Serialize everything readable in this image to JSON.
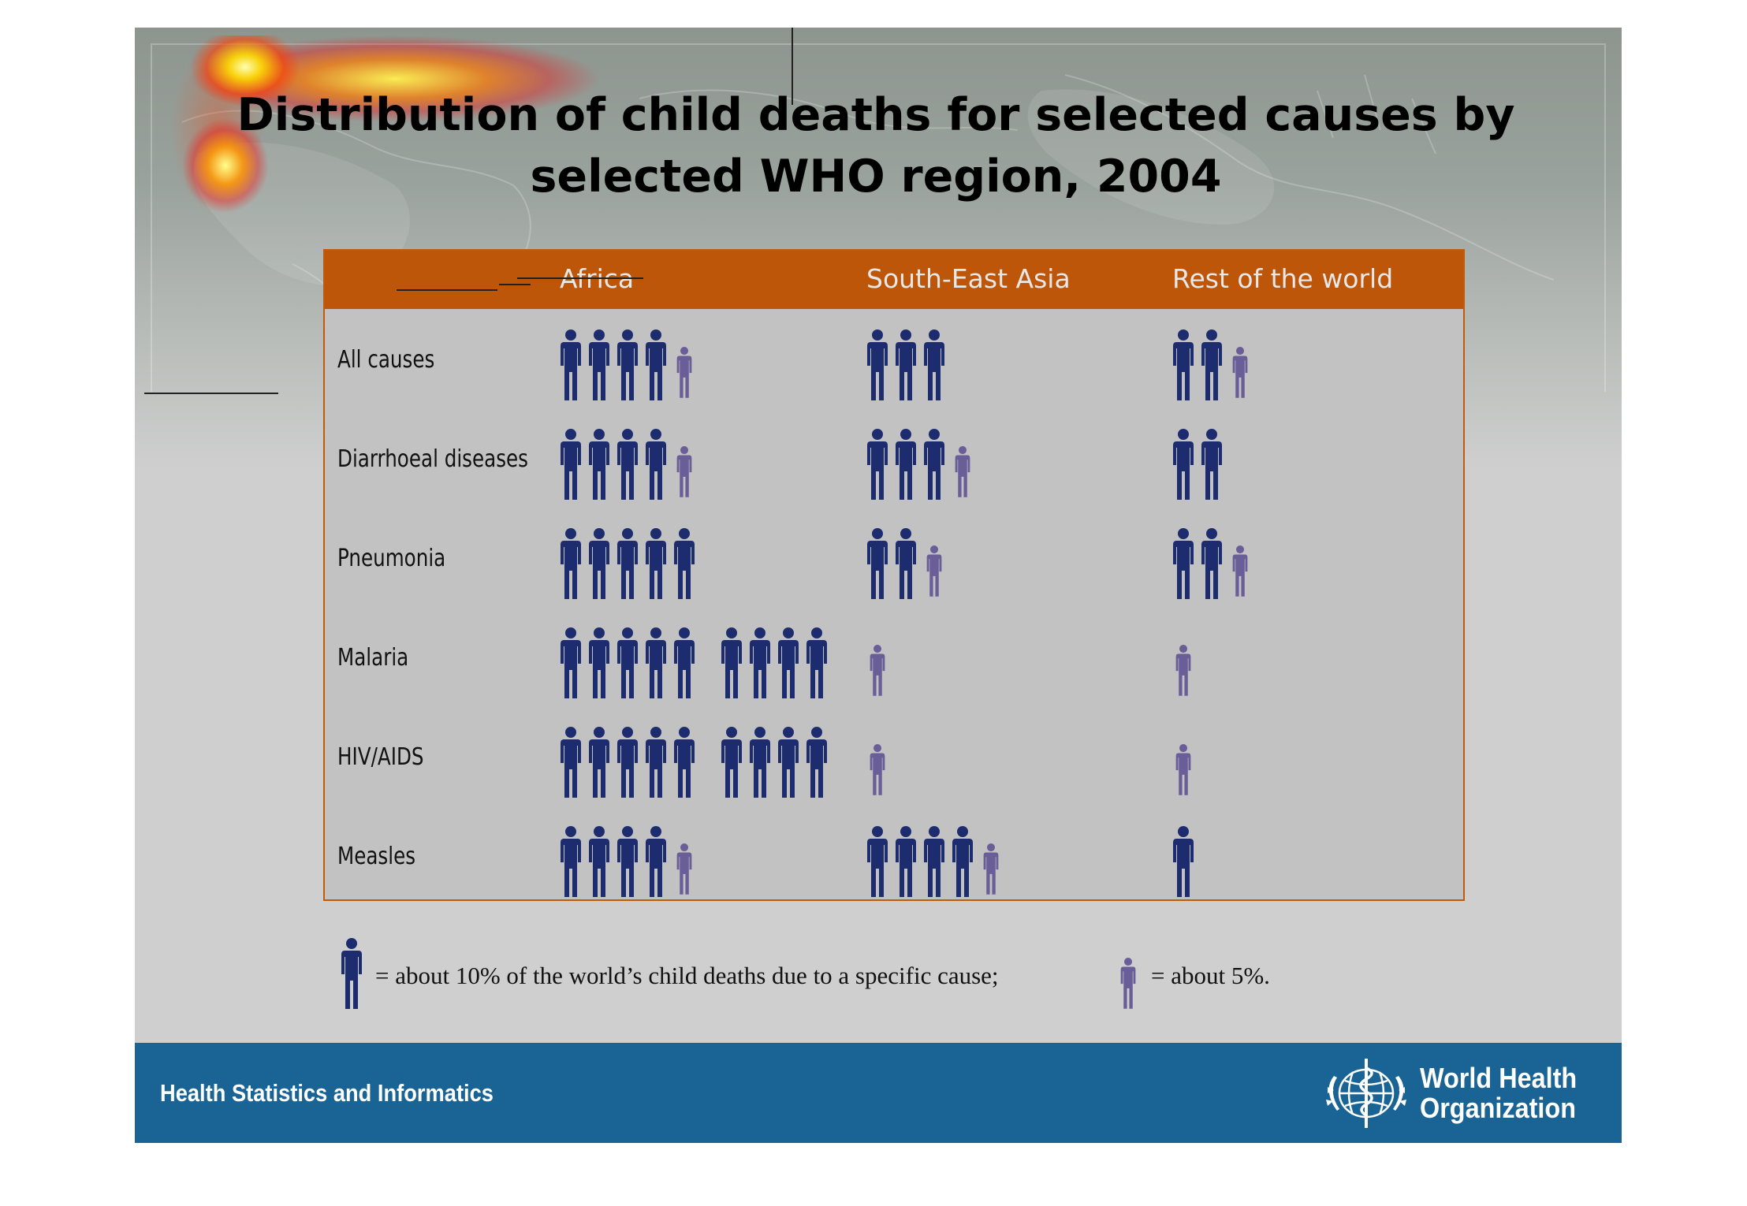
{
  "slide": {
    "title_line1": "Distribution of child deaths for selected causes by",
    "title_line2": "selected WHO region, 2004"
  },
  "colors": {
    "full_figure": "#1c2c6e",
    "half_figure": "#6a5e98",
    "header_band": "#bd5608",
    "panel": "#c2c2c2",
    "footer": "#1a6495"
  },
  "chart_data": {
    "type": "pictogram",
    "title": "Distribution of child deaths for selected causes by selected WHO region, 2004",
    "unit": "percent of the world's child deaths due to a specific cause",
    "regions": [
      "Africa",
      "South-East Asia",
      "Rest of the world"
    ],
    "causes": [
      "All causes",
      "Diarrhoeal diseases",
      "Pneumonia",
      "Malaria",
      "HIV/AIDS",
      "Measles"
    ],
    "series": [
      {
        "name": "Africa",
        "values": [
          45,
          45,
          50,
          90,
          90,
          45
        ]
      },
      {
        "name": "South-East Asia",
        "values": [
          30,
          35,
          25,
          5,
          5,
          45
        ]
      },
      {
        "name": "Rest of the world",
        "values": [
          25,
          20,
          25,
          5,
          5,
          10
        ]
      }
    ]
  },
  "legend": {
    "full_text": "= about 10% of the world’s child deaths due to a specific cause;",
    "half_text": "= about 5%."
  },
  "footer": {
    "left_text": "Health Statistics and Informatics",
    "org_line1": "World Health",
    "org_line2": "Organization"
  }
}
